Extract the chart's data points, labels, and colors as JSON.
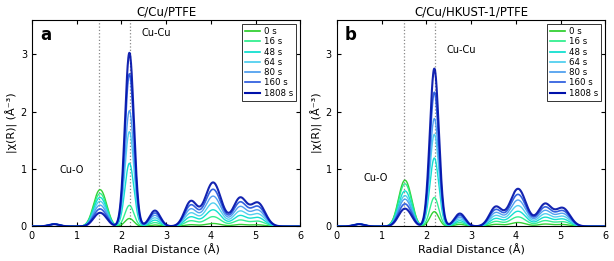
{
  "title_a": "C/Cu/PTFE",
  "title_b": "C/Cu/HKUST-1/PTFE",
  "xlabel": "Radial Distance (Å)",
  "ylabel": "|χ(R)| (Å⁻³)",
  "label_a": "a",
  "label_b": "b",
  "xlim": [
    0,
    6
  ],
  "ylim": [
    0,
    3.6
  ],
  "yticks": [
    0,
    1,
    2,
    3
  ],
  "xticks": [
    0,
    1,
    2,
    3,
    4,
    5,
    6
  ],
  "vline1": 1.5,
  "vline2": 2.2,
  "annotation_CuO": "Cu-O",
  "annotation_CuCu": "Cu-Cu",
  "CuO_x_a": 0.62,
  "CuO_y_a": 0.9,
  "CuCu_x_a": 2.45,
  "CuCu_y_a": 3.28,
  "CuO_x_b": 0.6,
  "CuO_y_b": 0.75,
  "CuCu_x_b": 2.45,
  "CuCu_y_b": 2.98,
  "times": [
    "0 s",
    "16 s",
    "48 s",
    "64 s",
    "80 s",
    "160 s",
    "1808 s"
  ],
  "colors": [
    "#22cc22",
    "#22ee88",
    "#00ddcc",
    "#44ccee",
    "#4499ee",
    "#2255dd",
    "#0011aa"
  ],
  "linewidths_a": [
    1.0,
    1.0,
    1.0,
    1.0,
    1.0,
    1.2,
    1.5
  ],
  "linewidths_b": [
    1.0,
    1.0,
    1.0,
    1.0,
    1.0,
    1.2,
    1.5
  ],
  "figsize": [
    6.14,
    2.61
  ],
  "dpi": 100
}
